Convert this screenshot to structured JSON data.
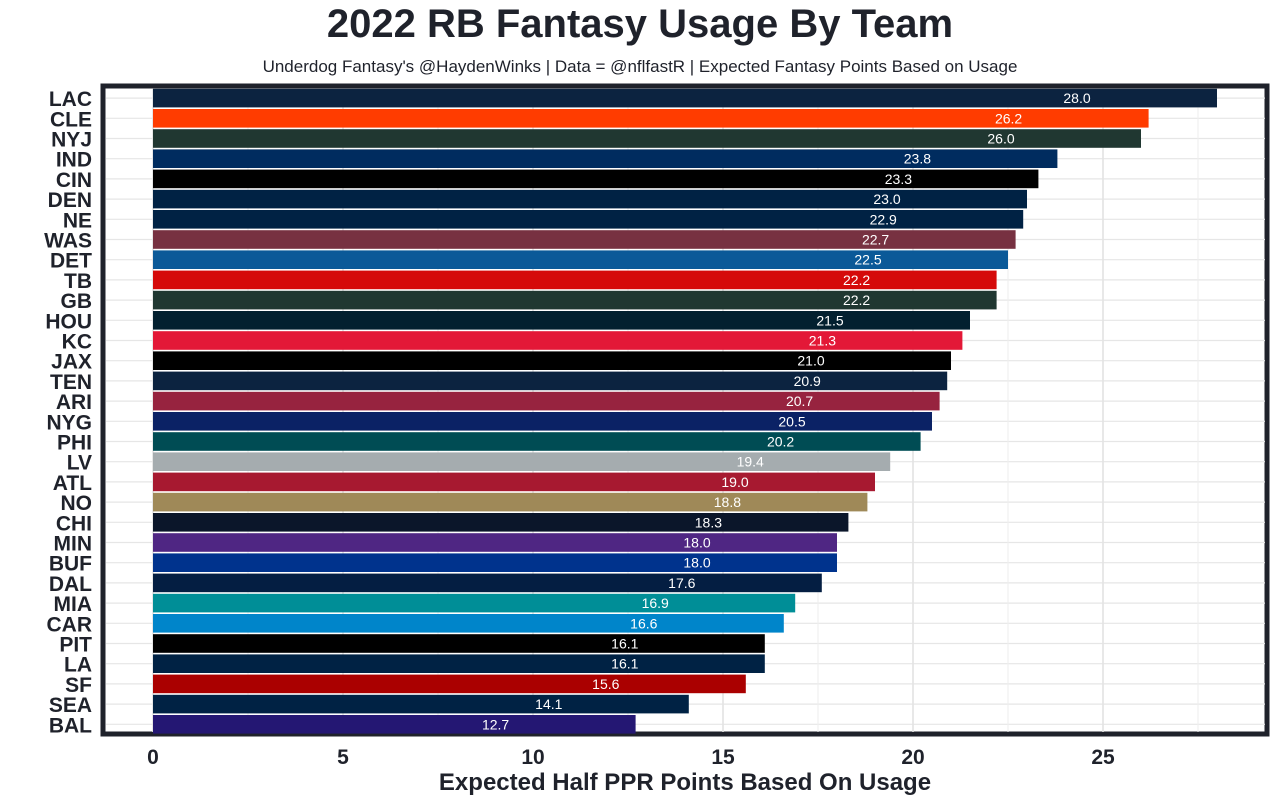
{
  "chart_data": {
    "type": "bar",
    "orientation": "horizontal",
    "title": "2022 RB Fantasy Usage By Team",
    "subtitle": "Underdog Fantasy's @HaydenWinks | Data = @nflfastR | Expected Fantasy Points Based on Usage",
    "xlabel": "Expected Half PPR Points Based On Usage",
    "ylabel": "",
    "xlim": [
      0,
      29
    ],
    "xticks": [
      0,
      5,
      10,
      15,
      20,
      25
    ],
    "grid": true,
    "categories": [
      "LAC",
      "CLE",
      "NYJ",
      "IND",
      "CIN",
      "DEN",
      "NE",
      "WAS",
      "DET",
      "TB",
      "GB",
      "HOU",
      "KC",
      "JAX",
      "TEN",
      "ARI",
      "NYG",
      "PHI",
      "LV",
      "ATL",
      "NO",
      "CHI",
      "MIN",
      "BUF",
      "DAL",
      "MIA",
      "CAR",
      "PIT",
      "LA",
      "SF",
      "SEA",
      "BAL"
    ],
    "values": [
      28.0,
      26.2,
      26.0,
      23.8,
      23.3,
      23.0,
      22.9,
      22.7,
      22.5,
      22.2,
      22.2,
      21.5,
      21.3,
      21.0,
      20.9,
      20.7,
      20.5,
      20.2,
      19.4,
      19.0,
      18.8,
      18.3,
      18.0,
      18.0,
      17.6,
      16.9,
      16.6,
      16.1,
      16.1,
      15.6,
      14.1,
      12.7
    ],
    "value_labels": [
      "28.0",
      "26.2",
      "26.0",
      "23.8",
      "23.3",
      "23.0",
      "22.9",
      "22.7",
      "22.5",
      "22.2",
      "22.2",
      "21.5",
      "21.3",
      "21.0",
      "20.9",
      "20.7",
      "20.5",
      "20.2",
      "19.4",
      "19.0",
      "18.8",
      "18.3",
      "18.0",
      "18.0",
      "17.6",
      "16.9",
      "16.6",
      "16.1",
      "16.1",
      "15.6",
      "14.1",
      "12.7"
    ],
    "colors": [
      "#0c2340",
      "#ff3c00",
      "#203731",
      "#002c5f",
      "#000000",
      "#002244",
      "#002244",
      "#773141",
      "#0b5998",
      "#d50a0a",
      "#203731",
      "#03202f",
      "#e31837",
      "#000000",
      "#0c2340",
      "#97233f",
      "#0b2265",
      "#004c54",
      "#a5acaf",
      "#a71930",
      "#9f8958",
      "#0b162a",
      "#4f2683",
      "#00338d",
      "#041e42",
      "#008e97",
      "#0085ca",
      "#000000",
      "#002244",
      "#aa0000",
      "#002244",
      "#241773"
    ]
  }
}
